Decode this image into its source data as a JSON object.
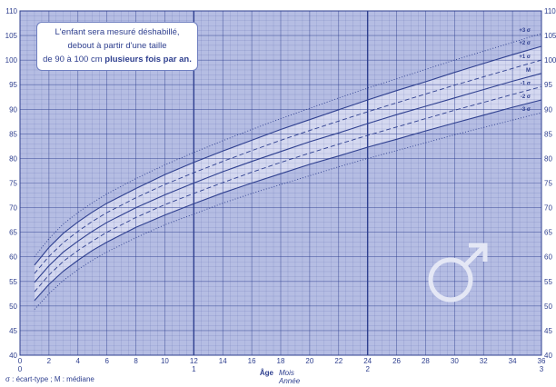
{
  "note": {
    "line1": "L'enfant sera mesuré déshabillé,",
    "line2": "debout à partir d'une taille",
    "line3_prefix": "de 90 à 100 cm ",
    "line3_bold": "plusieurs fois par an."
  },
  "footnote": "σ : écart-type ; M : médiane",
  "symbol_icon": "male-symbol-icon",
  "colors": {
    "background": "#b5bde3",
    "band": "#d9ddf2",
    "line": "#2e3f8f",
    "text": "#2e3f8f"
  },
  "chart_data": {
    "type": "line",
    "title": "",
    "xlabel": "Âge",
    "xlabel_units": [
      "Mois",
      "Année"
    ],
    "ylabel": "",
    "xlim": [
      0,
      36
    ],
    "ylim": [
      40,
      110
    ],
    "x_ticks": [
      0,
      2,
      4,
      6,
      8,
      10,
      12,
      14,
      16,
      18,
      20,
      22,
      24,
      26,
      28,
      30,
      32,
      34,
      36
    ],
    "x_year_ticks": [
      {
        "x": 0,
        "label": "0"
      },
      {
        "x": 12,
        "label": "1"
      },
      {
        "x": 24,
        "label": "2"
      },
      {
        "x": 36,
        "label": "3"
      }
    ],
    "y_ticks": [
      40,
      45,
      50,
      55,
      60,
      65,
      70,
      75,
      80,
      85,
      90,
      95,
      100,
      105,
      110
    ],
    "grid": true,
    "band_between": [
      "+2 σ",
      "-2 σ"
    ],
    "x": [
      1,
      2,
      3,
      4,
      5,
      6,
      8,
      10,
      12,
      14,
      16,
      18,
      20,
      22,
      24,
      26,
      28,
      30,
      32,
      34,
      36
    ],
    "series": [
      {
        "name": "+3 σ",
        "style": "dotted",
        "values": [
          60.0,
          63.7,
          66.7,
          69.0,
          71.0,
          72.8,
          75.9,
          78.7,
          81.2,
          83.6,
          85.9,
          88.1,
          90.2,
          92.3,
          94.3,
          96.2,
          98.1,
          100.0,
          101.8,
          103.6,
          105.4
        ]
      },
      {
        "name": "+2 σ",
        "style": "solid",
        "values": [
          58.3,
          61.9,
          64.8,
          67.1,
          69.1,
          70.9,
          73.9,
          76.7,
          79.2,
          81.5,
          83.7,
          85.9,
          87.9,
          89.9,
          91.9,
          93.8,
          95.6,
          97.5,
          99.3,
          101.1,
          102.8
        ]
      },
      {
        "name": "+1 σ",
        "style": "dashed",
        "values": [
          56.6,
          60.1,
          62.9,
          65.2,
          67.2,
          69.0,
          72.0,
          74.7,
          77.1,
          79.4,
          81.6,
          83.7,
          85.7,
          87.6,
          89.5,
          91.3,
          93.1,
          94.9,
          96.6,
          98.3,
          100.0
        ]
      },
      {
        "name": "M",
        "style": "solid",
        "values": [
          54.8,
          58.2,
          61.0,
          63.2,
          65.2,
          67.0,
          70.0,
          72.6,
          75.0,
          77.3,
          79.4,
          81.4,
          83.4,
          85.2,
          87.1,
          88.9,
          90.6,
          92.3,
          94.0,
          95.7,
          97.3
        ]
      },
      {
        "name": "-1 σ",
        "style": "dashed",
        "values": [
          52.9,
          56.3,
          59.1,
          61.3,
          63.2,
          65.0,
          68.0,
          70.6,
          72.9,
          75.1,
          77.2,
          79.2,
          81.1,
          82.9,
          84.7,
          86.4,
          88.1,
          89.8,
          91.4,
          93.0,
          94.6
        ]
      },
      {
        "name": "-2 σ",
        "style": "solid",
        "values": [
          51.1,
          54.4,
          57.1,
          59.3,
          61.3,
          63.0,
          66.0,
          68.5,
          70.8,
          73.0,
          75.0,
          76.9,
          78.8,
          80.5,
          82.3,
          83.9,
          85.6,
          87.2,
          88.8,
          90.4,
          91.9
        ]
      },
      {
        "name": "-3 σ",
        "style": "dotted",
        "values": [
          49.3,
          52.5,
          55.2,
          57.4,
          59.3,
          61.0,
          63.9,
          66.5,
          68.7,
          70.9,
          72.9,
          74.7,
          76.5,
          78.3,
          80.0,
          81.6,
          83.2,
          84.8,
          86.3,
          87.8,
          89.3
        ]
      }
    ]
  }
}
